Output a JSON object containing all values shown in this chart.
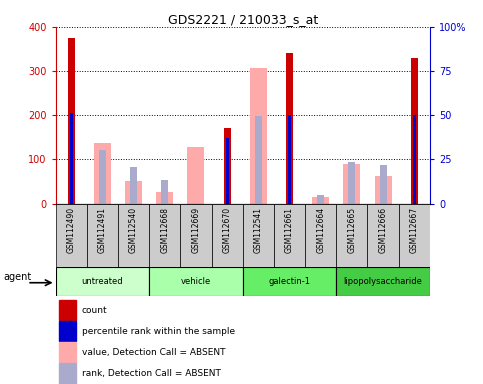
{
  "title": "GDS2221 / 210033_s_at",
  "samples": [
    "GSM112490",
    "GSM112491",
    "GSM112540",
    "GSM112668",
    "GSM112669",
    "GSM112670",
    "GSM112541",
    "GSM112661",
    "GSM112664",
    "GSM112665",
    "GSM112666",
    "GSM112667"
  ],
  "groups": [
    {
      "label": "untreated",
      "indices": [
        0,
        1,
        2
      ],
      "color": "#ccffcc"
    },
    {
      "label": "vehicle",
      "indices": [
        3,
        4,
        5
      ],
      "color": "#aaffaa"
    },
    {
      "label": "galectin-1",
      "indices": [
        6,
        7,
        8
      ],
      "color": "#66ee66"
    },
    {
      "label": "lipopolysaccharide",
      "indices": [
        9,
        10,
        11
      ],
      "color": "#44cc44"
    }
  ],
  "count_values": [
    375,
    null,
    null,
    null,
    null,
    170,
    null,
    340,
    null,
    null,
    null,
    330
  ],
  "percentile_values": [
    51,
    null,
    null,
    null,
    null,
    37,
    null,
    50,
    null,
    null,
    null,
    50
  ],
  "absent_value_bars": [
    null,
    138,
    52,
    27,
    128,
    null,
    307,
    null,
    15,
    90,
    62,
    null
  ],
  "absent_rank_bars": [
    null,
    122,
    82,
    54,
    null,
    null,
    198,
    null,
    20,
    94,
    88,
    null
  ],
  "left_ylim": [
    0,
    400
  ],
  "right_ylim": [
    0,
    100
  ],
  "left_yticks": [
    0,
    100,
    200,
    300,
    400
  ],
  "right_yticks": [
    0,
    25,
    50,
    75,
    100
  ],
  "right_yticklabels": [
    "0",
    "25",
    "50",
    "75",
    "100%"
  ],
  "color_count": "#cc0000",
  "color_percentile": "#0000cc",
  "color_absent_value": "#ffaaaa",
  "color_absent_rank": "#aaaacc",
  "bg_color": "#ffffff",
  "plot_bg": "#ffffff",
  "gray_box": "#cccccc"
}
